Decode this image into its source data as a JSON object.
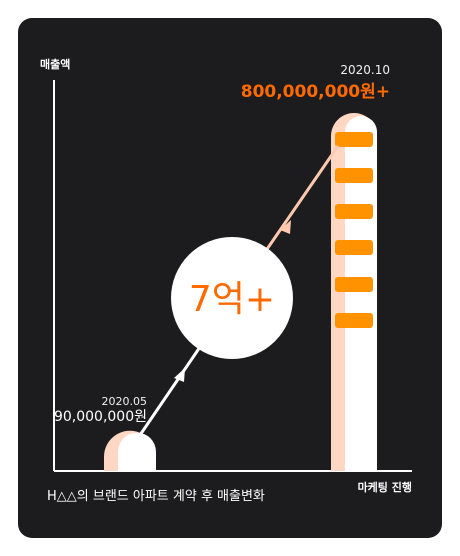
{
  "chart_data": {
    "type": "bar",
    "title": "H△△의 브랜드 아파트 계약 후 매출변화",
    "ylabel": "매출액",
    "xlabel": "마케팅 진행",
    "categories": [
      "2020.05",
      "2020.10"
    ],
    "values": [
      90000000,
      800000000
    ],
    "value_labels": [
      "90,000,000원",
      "800,000,000원+"
    ],
    "growth_label": "7억+",
    "ylim": [
      0,
      800000000
    ],
    "grid": false
  },
  "colors": {
    "background": "#1c1c1e",
    "axis": "#ffffff",
    "accent": "#ff6a00",
    "bar_light": "#ffd7c2",
    "bar_face": "#ffffff",
    "stripe": "#ff9200",
    "arrow_low": "#ffffff",
    "arrow_high": "#ffc9b0"
  }
}
